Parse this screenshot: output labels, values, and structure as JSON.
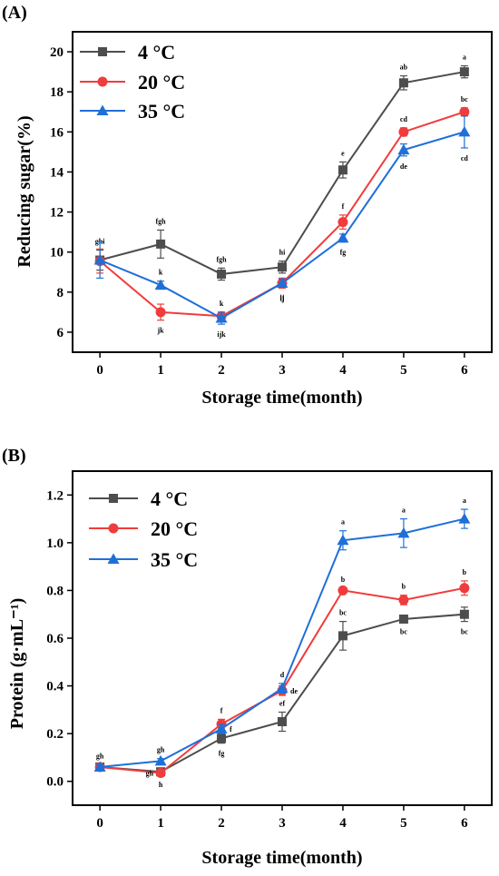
{
  "chart_data": [
    {
      "type": "line",
      "panel_label": "(A)",
      "xlabel": "Storage time(month)",
      "ylabel": "Reducing sugar(%)",
      "x": [
        0,
        1,
        2,
        3,
        4,
        5,
        6
      ],
      "xlim": [
        -0.45,
        6.45
      ],
      "ylim": [
        5,
        21
      ],
      "yticks": [
        6,
        8,
        10,
        12,
        14,
        16,
        18,
        20
      ],
      "ytick_labels": [
        "6",
        "8",
        "10",
        "12",
        "14",
        "16",
        "18",
        "20"
      ],
      "xtick_labels": [
        "0",
        "1",
        "2",
        "3",
        "4",
        "5",
        "6"
      ],
      "legend_position": "top-left",
      "grid": false,
      "series": [
        {
          "name": "4 °C",
          "color": "#4d4d4d",
          "marker": "square",
          "values": [
            9.6,
            10.4,
            8.9,
            9.25,
            14.1,
            18.45,
            19.0
          ],
          "errors": [
            0.5,
            0.7,
            0.3,
            0.3,
            0.4,
            0.35,
            0.3
          ],
          "significance": [
            "ghi",
            "fgh",
            "fgh",
            "hi",
            "e",
            "ab",
            "a"
          ]
        },
        {
          "name": "20 °C",
          "color": "#f03c3c",
          "marker": "circle",
          "values": [
            9.55,
            7.0,
            6.8,
            8.45,
            11.5,
            16.0,
            17.0
          ],
          "errors": [
            0.6,
            0.4,
            0.2,
            0.25,
            0.35,
            0.2,
            0.2
          ],
          "significance": [
            "",
            "jk",
            "k",
            "ij",
            "f",
            "cd",
            "bc"
          ]
        },
        {
          "name": "35 °C",
          "color": "#1f6fd8",
          "marker": "triangle",
          "values": [
            9.6,
            8.35,
            6.7,
            8.45,
            10.7,
            15.1,
            16.0
          ],
          "errors": [
            0.9,
            0.2,
            0.3,
            0.2,
            0.2,
            0.3,
            0.8
          ],
          "significance": [
            "",
            "k",
            "ijk",
            "ij",
            "fg",
            "de",
            "cd"
          ]
        }
      ]
    },
    {
      "type": "line",
      "panel_label": "(B)",
      "xlabel": "Storage time(month)",
      "ylabel": "Protein (g·mL⁻¹)",
      "x": [
        0,
        1,
        2,
        3,
        4,
        5,
        6
      ],
      "xlim": [
        -0.45,
        6.45
      ],
      "ylim": [
        -0.1,
        1.3
      ],
      "yticks": [
        0.0,
        0.2,
        0.4,
        0.6,
        0.8,
        1.0,
        1.2
      ],
      "ytick_labels": [
        "0.0",
        "0.2",
        "0.4",
        "0.6",
        "0.8",
        "1.0",
        "1.2"
      ],
      "xtick_labels": [
        "0",
        "1",
        "2",
        "3",
        "4",
        "5",
        "6"
      ],
      "legend_position": "top-left",
      "grid": false,
      "series": [
        {
          "name": "4 °C",
          "color": "#4d4d4d",
          "marker": "square",
          "values": [
            0.06,
            0.04,
            0.18,
            0.25,
            0.61,
            0.68,
            0.7
          ],
          "errors": [
            0.01,
            0.01,
            0.02,
            0.04,
            0.06,
            0.01,
            0.03
          ],
          "significance": [
            "gh",
            "h",
            "fg",
            "ef",
            "bc",
            "bc",
            "bc"
          ]
        },
        {
          "name": "20 °C",
          "color": "#f03c3c",
          "marker": "circle",
          "values": [
            0.06,
            0.035,
            0.24,
            0.38,
            0.8,
            0.76,
            0.81
          ],
          "errors": [
            0.01,
            0.01,
            0.02,
            0.02,
            0.01,
            0.02,
            0.03
          ],
          "significance": [
            "",
            "gh",
            "f",
            "de",
            "b",
            "b",
            "b"
          ]
        },
        {
          "name": "35 °C",
          "color": "#1f6fd8",
          "marker": "triangle",
          "values": [
            0.06,
            0.085,
            0.22,
            0.39,
            1.01,
            1.04,
            1.1
          ],
          "errors": [
            0.01,
            0.01,
            0.02,
            0.02,
            0.04,
            0.06,
            0.04
          ],
          "significance": [
            "",
            "gh",
            "f",
            "d",
            "a",
            "a",
            "a"
          ]
        }
      ]
    }
  ]
}
